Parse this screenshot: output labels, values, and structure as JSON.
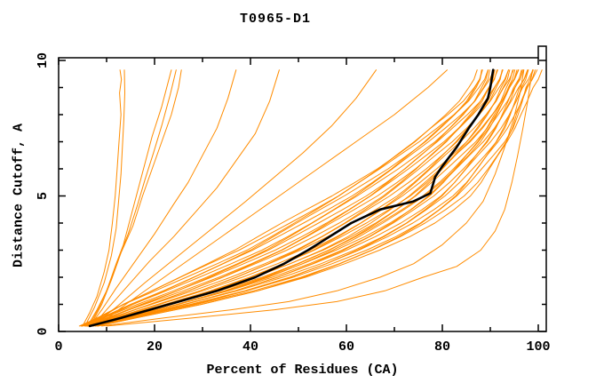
{
  "window": {
    "title": "T0965-D1"
  },
  "chart_data": {
    "type": "line",
    "title": "T0965-D1",
    "xlabel": "Percent of Residues (CA)",
    "ylabel": "Distance Cutoff, A",
    "xlim": [
      0,
      101.7
    ],
    "ylim": [
      0,
      10.1
    ],
    "grid": false,
    "legend": "none",
    "x_major_ticks": [
      0,
      20,
      40,
      60,
      80,
      100
    ],
    "x_minor_ticks": [
      10,
      30,
      50,
      70,
      90
    ],
    "y_major_ticks": [
      0,
      5,
      10
    ],
    "y_minor_ticks": [
      1,
      2,
      3,
      4,
      6,
      7,
      8,
      9
    ],
    "x_tick_labels": [
      "0",
      "20",
      "40",
      "60",
      "80",
      "100"
    ],
    "y_tick_labels": [
      "0",
      "5",
      "10"
    ],
    "colors": {
      "model_line": "#ff8c00",
      "highlight_line": "#000000",
      "frame": "#000000",
      "background": "#ffffff"
    },
    "highlight_series": {
      "name": "selected-model",
      "points": [
        [
          6.5,
          0.2
        ],
        [
          13,
          0.5
        ],
        [
          23,
          1
        ],
        [
          33,
          1.5
        ],
        [
          41,
          2
        ],
        [
          47,
          2.5
        ],
        [
          52,
          3
        ],
        [
          56.5,
          3.5
        ],
        [
          61,
          4
        ],
        [
          67,
          4.5
        ],
        [
          74,
          4.8
        ],
        [
          77.5,
          5.1
        ],
        [
          78.5,
          5.7
        ],
        [
          80,
          6.1
        ],
        [
          83,
          6.8
        ],
        [
          85.5,
          7.5
        ],
        [
          87.5,
          8
        ],
        [
          89.5,
          8.6
        ],
        [
          90,
          9
        ],
        [
          90.6,
          9.65
        ]
      ]
    },
    "outlier_series": [
      {
        "name": "model-left-steep-1",
        "points": [
          [
            5,
            0.2
          ],
          [
            6.5,
            0.7
          ],
          [
            8,
            1.3
          ],
          [
            9.5,
            2.2
          ],
          [
            10.5,
            3
          ],
          [
            11.2,
            4
          ],
          [
            11.8,
            5
          ],
          [
            12.2,
            6
          ],
          [
            12.6,
            7
          ],
          [
            13,
            8
          ],
          [
            12.7,
            8.8
          ],
          [
            13.1,
            9.3
          ],
          [
            12.8,
            9.65
          ]
        ]
      },
      {
        "name": "model-left-steep-2",
        "points": [
          [
            5.5,
            0.2
          ],
          [
            7.5,
            0.9
          ],
          [
            9.5,
            1.8
          ],
          [
            11,
            2.8
          ],
          [
            12,
            3.8
          ],
          [
            12.5,
            4.8
          ],
          [
            13,
            5.8
          ],
          [
            13.3,
            6.8
          ],
          [
            13.6,
            7.8
          ],
          [
            13.8,
            8.8
          ],
          [
            13.7,
            9.65
          ]
        ]
      },
      {
        "name": "model-cluster-24-1",
        "points": [
          [
            6,
            0.2
          ],
          [
            8,
            0.8
          ],
          [
            10,
            1.5
          ],
          [
            12,
            2.5
          ],
          [
            13.5,
            3.2
          ],
          [
            15,
            4.2
          ],
          [
            16.5,
            5.2
          ],
          [
            18,
            6.2
          ],
          [
            19.5,
            7.2
          ],
          [
            21.5,
            8.3
          ],
          [
            23.5,
            9.65
          ]
        ]
      },
      {
        "name": "model-cluster-24-2",
        "points": [
          [
            6.3,
            0.2
          ],
          [
            8.5,
            0.9
          ],
          [
            10.5,
            1.7
          ],
          [
            12.5,
            2.7
          ],
          [
            14.5,
            3.6
          ],
          [
            16.5,
            4.7
          ],
          [
            18,
            5.6
          ],
          [
            19.8,
            6.6
          ],
          [
            21.5,
            7.6
          ],
          [
            23.2,
            8.7
          ],
          [
            24.5,
            9.65
          ]
        ]
      },
      {
        "name": "model-cluster-24-3",
        "points": [
          [
            6.6,
            0.2
          ],
          [
            9,
            1
          ],
          [
            11,
            1.9
          ],
          [
            13,
            2.9
          ],
          [
            15.5,
            3.9
          ],
          [
            17.5,
            5
          ],
          [
            19.5,
            6
          ],
          [
            21.5,
            7
          ],
          [
            23.5,
            8
          ],
          [
            25,
            9
          ],
          [
            25.6,
            9.65
          ]
        ]
      },
      {
        "name": "model-diag-37",
        "points": [
          [
            6.5,
            0.2
          ],
          [
            9,
            0.8
          ],
          [
            12,
            1.6
          ],
          [
            16,
            2.6
          ],
          [
            20,
            3.6
          ],
          [
            24,
            4.7
          ],
          [
            27,
            5.5
          ],
          [
            30,
            6.5
          ],
          [
            33,
            7.5
          ],
          [
            35.3,
            8.6
          ],
          [
            37,
            9.65
          ]
        ]
      },
      {
        "name": "model-diag-46",
        "points": [
          [
            7,
            0.2
          ],
          [
            10,
            0.8
          ],
          [
            14,
            1.6
          ],
          [
            19,
            2.6
          ],
          [
            24,
            3.5
          ],
          [
            29,
            4.5
          ],
          [
            33,
            5.3
          ],
          [
            37,
            6.3
          ],
          [
            41,
            7.3
          ],
          [
            44,
            8.5
          ],
          [
            46,
            9.65
          ]
        ]
      },
      {
        "name": "model-diag-66",
        "points": [
          [
            7,
            0.2
          ],
          [
            12,
            0.9
          ],
          [
            18,
            1.8
          ],
          [
            25,
            2.8
          ],
          [
            32,
            3.8
          ],
          [
            39,
            4.8
          ],
          [
            45,
            5.7
          ],
          [
            51,
            6.6
          ],
          [
            57,
            7.6
          ],
          [
            62,
            8.6
          ],
          [
            66.2,
            9.65
          ]
        ]
      },
      {
        "name": "model-diag-81",
        "points": [
          [
            8,
            0.2
          ],
          [
            14,
            1
          ],
          [
            22,
            2
          ],
          [
            30,
            3
          ],
          [
            38,
            4
          ],
          [
            46,
            5
          ],
          [
            54,
            6
          ],
          [
            62,
            7
          ],
          [
            70,
            8
          ],
          [
            77,
            9
          ],
          [
            81,
            9.65
          ]
        ]
      },
      {
        "name": "model-right-outlier-1",
        "points": [
          [
            10,
            0.2
          ],
          [
            28,
            0.5
          ],
          [
            45,
            0.8
          ],
          [
            58,
            1.1
          ],
          [
            68,
            1.5
          ],
          [
            76,
            2
          ],
          [
            83,
            2.4
          ],
          [
            88,
            3
          ],
          [
            91,
            3.7
          ],
          [
            93,
            4.5
          ],
          [
            94.5,
            5.5
          ],
          [
            95.7,
            6.5
          ],
          [
            96.8,
            7.5
          ],
          [
            97.8,
            8.5
          ],
          [
            98.3,
            9.1
          ],
          [
            98.8,
            9.65
          ]
        ]
      },
      {
        "name": "model-right-outlier-2",
        "points": [
          [
            9,
            0.2
          ],
          [
            22,
            0.5
          ],
          [
            36,
            0.8
          ],
          [
            48,
            1.1
          ],
          [
            58,
            1.5
          ],
          [
            67,
            2
          ],
          [
            74,
            2.5
          ],
          [
            80,
            3.2
          ],
          [
            85,
            4
          ],
          [
            88.5,
            4.8
          ],
          [
            91,
            5.8
          ],
          [
            93,
            6.8
          ],
          [
            94.8,
            7.8
          ],
          [
            96.2,
            8.8
          ],
          [
            97,
            9.65
          ]
        ]
      }
    ],
    "bundle": {
      "name": "model-bundle",
      "count": 34,
      "y_levels": [
        0.2,
        0.5,
        1,
        1.5,
        2,
        2.5,
        3,
        3.5,
        4,
        4.5,
        5,
        5.5,
        6,
        6.5,
        7,
        7.5,
        8,
        8.5,
        9,
        9.3,
        9.65
      ],
      "left_edge_x": [
        4.5,
        8,
        13,
        19,
        25,
        31,
        37,
        42,
        47,
        52,
        57,
        61.5,
        66,
        70,
        74,
        77.5,
        81,
        84,
        86,
        87,
        87.5
      ],
      "right_edge_x": [
        8,
        16,
        30,
        42,
        52,
        60,
        67,
        73,
        78,
        82,
        85.5,
        88,
        90,
        92,
        94,
        95.5,
        96.5,
        97.5,
        98.5,
        99.5,
        100.3
      ],
      "t_values": [
        0.0,
        0.03,
        0.06,
        0.1,
        0.13,
        0.17,
        0.2,
        0.24,
        0.27,
        0.3,
        0.33,
        0.36,
        0.4,
        0.43,
        0.46,
        0.5,
        0.53,
        0.56,
        0.6,
        0.63,
        0.66,
        0.7,
        0.72,
        0.75,
        0.78,
        0.81,
        0.84,
        0.87,
        0.9,
        0.93,
        0.96,
        1.0,
        0.58,
        0.68
      ],
      "wiggle": {
        "amplitude_pct": 0.5,
        "frequency": 1.25,
        "phase_step": 1.9
      }
    }
  }
}
